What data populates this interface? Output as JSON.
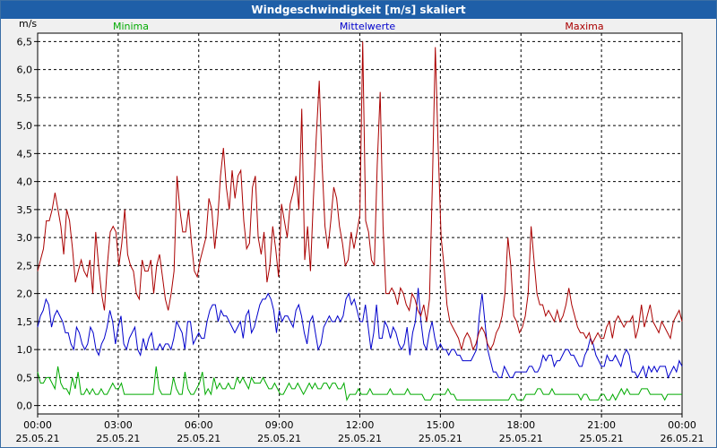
{
  "chart_data": {
    "type": "line",
    "title": "Windgeschwindigkeit [m/s] skaliert",
    "ylabel": "m/s",
    "ylim": [
      -0.15,
      6.65
    ],
    "yticks": [
      "0,0",
      "0,5",
      "1,0",
      "1,5",
      "2,0",
      "2,5",
      "3,0",
      "3,5",
      "4,0",
      "4,5",
      "5,0",
      "5,5",
      "6,0",
      "6,5"
    ],
    "xlim": [
      0,
      24
    ],
    "xticks": [
      {
        "time": "00:00",
        "date": "25.05.21"
      },
      {
        "time": "03:00",
        "date": "25.05.21"
      },
      {
        "time": "06:00",
        "date": "25.05.21"
      },
      {
        "time": "09:00",
        "date": "25.05.21"
      },
      {
        "time": "12:00",
        "date": "25.05.21"
      },
      {
        "time": "15:00",
        "date": "25.05.21"
      },
      {
        "time": "18:00",
        "date": "25.05.21"
      },
      {
        "time": "21:00",
        "date": "25.05.21"
      },
      {
        "time": "00:00",
        "date": "26.05.21"
      }
    ],
    "grid": true,
    "legend_position": "top",
    "series": [
      {
        "name": "Minima",
        "color": "#00aa00",
        "values": [
          0.6,
          0.4,
          0.4,
          0.5,
          0.5,
          0.4,
          0.3,
          0.7,
          0.4,
          0.3,
          0.3,
          0.2,
          0.5,
          0.3,
          0.6,
          0.2,
          0.2,
          0.3,
          0.2,
          0.3,
          0.2,
          0.2,
          0.3,
          0.2,
          0.2,
          0.3,
          0.4,
          0.3,
          0.3,
          0.4,
          0.2,
          0.2,
          0.2,
          0.2,
          0.2,
          0.2,
          0.2,
          0.2,
          0.2,
          0.2,
          0.2,
          0.7,
          0.3,
          0.2,
          0.2,
          0.2,
          0.2,
          0.5,
          0.3,
          0.2,
          0.2,
          0.6,
          0.3,
          0.2,
          0.2,
          0.3,
          0.4,
          0.6,
          0.2,
          0.3,
          0.2,
          0.5,
          0.3,
          0.4,
          0.3,
          0.3,
          0.4,
          0.3,
          0.3,
          0.5,
          0.4,
          0.5,
          0.4,
          0.3,
          0.5,
          0.4,
          0.4,
          0.4,
          0.5,
          0.4,
          0.3,
          0.3,
          0.4,
          0.3,
          0.2,
          0.2,
          0.3,
          0.4,
          0.3,
          0.3,
          0.4,
          0.3,
          0.2,
          0.3,
          0.4,
          0.3,
          0.4,
          0.3,
          0.3,
          0.4,
          0.4,
          0.3,
          0.4,
          0.4,
          0.3,
          0.3,
          0.4,
          0.1,
          0.2,
          0.2,
          0.2,
          0.3,
          0.2,
          0.2,
          0.2,
          0.3,
          0.2,
          0.2,
          0.2,
          0.2,
          0.2,
          0.2,
          0.3,
          0.2,
          0.2,
          0.2,
          0.2,
          0.2,
          0.3,
          0.2,
          0.2,
          0.2,
          0.2,
          0.2,
          0.1,
          0.1,
          0.1,
          0.2,
          0.2,
          0.2,
          0.2,
          0.2,
          0.3,
          0.2,
          0.2,
          0.1,
          0.1,
          0.1,
          0.1,
          0.1,
          0.1,
          0.1,
          0.1,
          0.1,
          0.1,
          0.1,
          0.1,
          0.1,
          0.1,
          0.1,
          0.1,
          0.1,
          0.1,
          0.1,
          0.2,
          0.2,
          0.1,
          0.1,
          0.1,
          0.2,
          0.2,
          0.2,
          0.2,
          0.3,
          0.3,
          0.2,
          0.2,
          0.2,
          0.3,
          0.2,
          0.2,
          0.2,
          0.2,
          0.2,
          0.2,
          0.2,
          0.2,
          0.2,
          0.1,
          0.2,
          0.2,
          0.1,
          0.1,
          0.1,
          0.1,
          0.2,
          0.2,
          0.1,
          0.1,
          0.2,
          0.1,
          0.2,
          0.3,
          0.2,
          0.3,
          0.2,
          0.2,
          0.2,
          0.2,
          0.3,
          0.3,
          0.3,
          0.2,
          0.2,
          0.2,
          0.2,
          0.2,
          0.1,
          0.2,
          0.2,
          0.2,
          0.2,
          0.2,
          0.2
        ]
      },
      {
        "name": "Mittelwerte",
        "color": "#0000cc",
        "values": [
          1.4,
          1.6,
          1.7,
          1.9,
          1.8,
          1.4,
          1.6,
          1.7,
          1.6,
          1.5,
          1.3,
          1.3,
          1.1,
          1.0,
          1.4,
          1.3,
          1.1,
          1.0,
          1.1,
          1.4,
          1.3,
          1.0,
          0.9,
          1.1,
          1.2,
          1.4,
          1.7,
          1.5,
          1.1,
          1.4,
          1.6,
          1.1,
          1.0,
          1.2,
          1.3,
          1.4,
          1.0,
          0.9,
          1.2,
          1.0,
          1.2,
          1.3,
          1.0,
          1.0,
          1.1,
          1.0,
          1.1,
          1.1,
          1.0,
          1.2,
          1.5,
          1.4,
          1.3,
          1.0,
          1.5,
          1.5,
          1.1,
          1.2,
          1.3,
          1.2,
          1.2,
          1.5,
          1.7,
          1.8,
          1.8,
          1.5,
          1.7,
          1.6,
          1.6,
          1.5,
          1.4,
          1.3,
          1.4,
          1.5,
          1.2,
          1.6,
          1.7,
          1.3,
          1.4,
          1.6,
          1.8,
          1.9,
          1.9,
          2.0,
          1.9,
          1.7,
          1.3,
          1.7,
          1.5,
          1.6,
          1.6,
          1.5,
          1.4,
          1.7,
          1.8,
          1.6,
          1.3,
          1.1,
          1.5,
          1.6,
          1.3,
          1.0,
          1.1,
          1.4,
          1.5,
          1.6,
          1.5,
          1.5,
          1.6,
          1.5,
          1.6,
          1.9,
          2.0,
          1.8,
          1.9,
          1.7,
          1.5,
          1.5,
          1.8,
          1.4,
          1.0,
          1.3,
          1.8,
          1.2,
          1.2,
          1.5,
          1.4,
          1.2,
          1.4,
          1.3,
          1.1,
          1.0,
          1.1,
          1.4,
          0.9,
          1.3,
          1.5,
          2.1,
          1.5,
          1.1,
          1.0,
          1.3,
          1.5,
          1.2,
          1.0,
          1.1,
          1.0,
          1.0,
          0.9,
          1.0,
          1.0,
          0.9,
          0.9,
          0.8,
          0.8,
          0.8,
          0.8,
          0.9,
          1.0,
          1.6,
          2.0,
          1.5,
          1.0,
          0.8,
          0.6,
          0.6,
          0.5,
          0.5,
          0.7,
          0.6,
          0.5,
          0.5,
          0.6,
          0.6,
          0.6,
          0.6,
          0.6,
          0.7,
          0.7,
          0.6,
          0.6,
          0.7,
          0.9,
          0.8,
          0.9,
          0.9,
          0.7,
          0.8,
          0.8,
          0.9,
          1.0,
          1.0,
          0.9,
          0.9,
          0.8,
          0.7,
          0.7,
          0.9,
          1.0,
          1.2,
          1.1,
          0.9,
          0.8,
          0.7,
          0.7,
          0.9,
          0.8,
          0.8,
          0.9,
          0.8,
          0.7,
          0.9,
          1.0,
          0.9,
          0.6,
          0.6,
          0.5,
          0.6,
          0.7,
          0.5,
          0.7,
          0.6,
          0.7,
          0.6,
          0.7,
          0.7,
          0.7,
          0.5,
          0.6,
          0.7,
          0.6,
          0.8,
          0.7
        ]
      },
      {
        "name": "Maxima",
        "color": "#aa0000",
        "values": [
          2.4,
          2.6,
          2.8,
          3.3,
          3.3,
          3.5,
          3.8,
          3.5,
          3.2,
          2.7,
          3.5,
          3.3,
          2.8,
          2.2,
          2.4,
          2.6,
          2.4,
          2.3,
          2.6,
          2.0,
          3.1,
          2.5,
          2.0,
          1.7,
          2.5,
          3.1,
          3.2,
          3.1,
          2.5,
          2.9,
          3.5,
          2.7,
          2.5,
          2.4,
          2.0,
          1.9,
          2.6,
          2.4,
          2.4,
          2.6,
          2.0,
          2.5,
          2.7,
          2.3,
          1.9,
          1.7,
          2.0,
          2.4,
          4.1,
          3.5,
          3.1,
          3.1,
          3.5,
          2.9,
          2.4,
          2.3,
          2.6,
          2.8,
          3.0,
          3.7,
          3.5,
          2.8,
          3.3,
          4.1,
          4.6,
          3.9,
          3.5,
          4.2,
          3.7,
          4.1,
          4.2,
          3.3,
          2.8,
          2.9,
          3.9,
          4.1,
          3.0,
          2.7,
          3.1,
          2.2,
          2.5,
          3.2,
          2.8,
          2.3,
          3.6,
          3.3,
          3.0,
          3.6,
          3.8,
          4.1,
          3.5,
          5.3,
          2.6,
          3.2,
          2.4,
          3.7,
          4.8,
          5.8,
          4.3,
          3.2,
          2.8,
          3.3,
          3.9,
          3.7,
          3.2,
          2.9,
          2.5,
          2.6,
          3.1,
          2.8,
          3.1,
          3.4,
          6.5,
          3.3,
          3.1,
          2.6,
          2.5,
          4.3,
          5.6,
          3.2,
          2.0,
          2.0,
          2.1,
          2.0,
          1.8,
          2.1,
          2.0,
          1.8,
          1.7,
          2.0,
          1.9,
          1.7,
          1.6,
          1.8,
          1.5,
          1.9,
          4.0,
          6.4,
          4.6,
          3.0,
          2.5,
          1.8,
          1.5,
          1.4,
          1.3,
          1.2,
          1.0,
          1.2,
          1.3,
          1.2,
          1.0,
          1.1,
          1.3,
          1.4,
          1.3,
          1.1,
          1.0,
          1.1,
          1.3,
          1.4,
          1.6,
          2.0,
          3.0,
          2.5,
          1.6,
          1.5,
          1.3,
          1.4,
          1.6,
          2.0,
          3.2,
          2.6,
          2.0,
          1.8,
          1.8,
          1.6,
          1.7,
          1.6,
          1.5,
          1.7,
          1.5,
          1.6,
          1.8,
          2.1,
          1.8,
          1.6,
          1.4,
          1.3,
          1.3,
          1.2,
          1.3,
          1.1,
          1.2,
          1.3,
          1.2,
          1.2,
          1.4,
          1.5,
          1.2,
          1.5,
          1.6,
          1.5,
          1.4,
          1.5,
          1.5,
          1.6,
          1.2,
          1.4,
          1.8,
          1.4,
          1.6,
          1.8,
          1.5,
          1.4,
          1.3,
          1.5,
          1.4,
          1.3,
          1.2,
          1.5,
          1.6,
          1.7,
          1.5
        ]
      }
    ]
  }
}
